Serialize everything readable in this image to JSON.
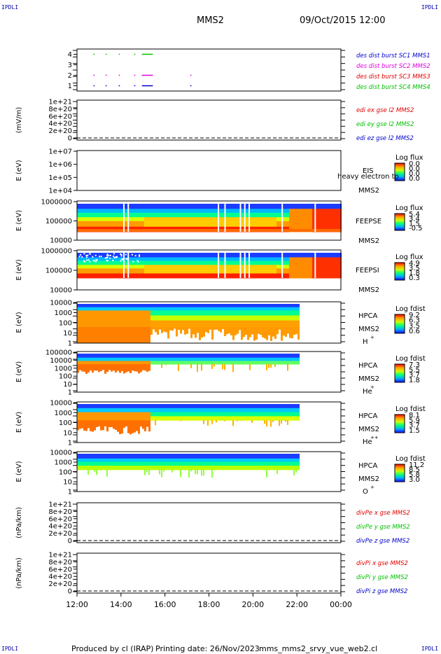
{
  "header": {
    "corner_tl": "IPDLI",
    "corner_tr": "IPDLI",
    "corner_bl": "IPDLI",
    "corner_br": "IPDLI",
    "spacecraft": "MMS2",
    "datetime": "09/Oct/2015 12:00"
  },
  "footer": {
    "produced_by": "Produced by cl (IRAP)",
    "printing_date": "Printing date: 26/Nov/2023",
    "filename": "mms_mms2_srvy_vue_web2.cl"
  },
  "time_axis": {
    "ticks": [
      "12:00",
      "14:00",
      "16:00",
      "18:00",
      "20:00",
      "22:00",
      "00:00"
    ],
    "start_hour": 12,
    "end_hour": 24
  },
  "colors": {
    "red": "#e00000",
    "green": "#00c000",
    "blue": "#0000cc",
    "magenta": "#e000e0",
    "panel_border": "#000000"
  },
  "chart_data": [
    {
      "type": "line",
      "panel": "burst",
      "yticks": [
        "4",
        "3",
        "2",
        "1"
      ],
      "ylim": [
        0.5,
        4.5
      ],
      "legend": [
        {
          "name": "des dist burst SC1 MMS1",
          "color": "#0000cc"
        },
        {
          "name": "des dist burst SC2 MMS2",
          "color": "#e000e0"
        },
        {
          "name": "des dist burst SC3 MMS3",
          "color": "#e00000"
        },
        {
          "name": "des dist burst SC4 MMS4",
          "color": "#00c000"
        }
      ],
      "series": [
        {
          "name": "des dist burst SC4 MMS4",
          "level": 4,
          "intervals": [
            [
              12.75,
              12.8
            ],
            [
              13.3,
              13.35
            ],
            [
              13.9,
              13.95
            ],
            [
              14.6,
              14.65
            ],
            [
              14.95,
              15.45
            ]
          ]
        },
        {
          "name": "des dist burst SC2 MMS2",
          "level": 2,
          "intervals": [
            [
              12.75,
              12.8
            ],
            [
              13.3,
              13.35
            ],
            [
              13.9,
              13.95
            ],
            [
              14.6,
              14.65
            ],
            [
              14.95,
              15.45
            ],
            [
              17.15,
              17.2
            ]
          ]
        },
        {
          "name": "des dist burst SC1 MMS1",
          "level": 1,
          "intervals": [
            [
              12.75,
              12.8
            ],
            [
              13.3,
              13.35
            ],
            [
              13.9,
              13.95
            ],
            [
              14.6,
              14.65
            ],
            [
              14.95,
              15.45
            ],
            [
              17.15,
              17.2
            ]
          ]
        }
      ]
    },
    {
      "type": "line",
      "panel": "edi",
      "ylabel": "(mV/m)",
      "yticks": [
        "1e+21",
        "8e+20",
        "6e+20",
        "4e+20",
        "2e+20",
        "0"
      ],
      "ylim": [
        0,
        1e+21
      ],
      "legend": [
        {
          "name": "edi ex gse l2 MMS2",
          "color": "#e00000"
        },
        {
          "name": "edi ey gse l2 MMS2",
          "color": "#00c000"
        },
        {
          "name": "edi ez gse l2 MMS2",
          "color": "#0000cc"
        }
      ]
    },
    {
      "type": "heatmap",
      "panel": "eis",
      "ylabel": "E (eV)",
      "yticks": [
        "1e+07",
        "1e+06",
        "1e+05",
        "1e+04"
      ],
      "instrument": "EIS",
      "species": "heavy electron to",
      "spacecraft": "MMS2",
      "colorbar_label": "Log flux",
      "colorbar_ticks": [
        "0.0",
        "0.0",
        "0.0",
        "0.0"
      ]
    },
    {
      "type": "heatmap",
      "panel": "feepse",
      "ylabel": "E (eV)",
      "yticks": [
        "1000000",
        "100000",
        "10000"
      ],
      "instrument": "FEEPSE",
      "spacecraft": "MMS2",
      "colorbar_label": "Log flux",
      "colorbar_ticks": [
        "5.4",
        "3.4",
        "1.5",
        "-0.5"
      ]
    },
    {
      "type": "heatmap",
      "panel": "feepsi",
      "ylabel": "E (eV)",
      "yticks": [
        "1000000",
        "100000",
        "10000"
      ],
      "instrument": "FEEPSI",
      "spacecraft": "MMS2",
      "colorbar_label": "Log flux",
      "colorbar_ticks": [
        "4.9",
        "3.5",
        "1.8",
        "0.3"
      ]
    },
    {
      "type": "heatmap",
      "panel": "hpca_h",
      "ylabel": "E (eV)",
      "yticks": [
        "10000",
        "1000",
        "100",
        "10",
        "1"
      ],
      "instrument": "HPCA",
      "spacecraft": "MMS2",
      "species": "H",
      "charge": "+",
      "colorbar_label": "Log fdist",
      "colorbar_ticks": [
        "9.2",
        "6.3",
        "3.5",
        "0.6"
      ]
    },
    {
      "type": "heatmap",
      "panel": "hpca_he",
      "ylabel": "E (eV)",
      "yticks": [
        "100000",
        "10000",
        "1000",
        "100",
        "10",
        "1"
      ],
      "instrument": "HPCA",
      "spacecraft": "MMS2",
      "species": "He",
      "charge": "+",
      "colorbar_label": "Log fdist",
      "colorbar_ticks": [
        "7.3",
        "5.5",
        "3.7",
        "1.8"
      ]
    },
    {
      "type": "heatmap",
      "panel": "hpca_hepp",
      "ylabel": "E (eV)",
      "yticks": [
        "10000",
        "1000",
        "100",
        "10",
        "1"
      ],
      "instrument": "HPCA",
      "spacecraft": "MMS2",
      "species": "He",
      "charge": "++",
      "colorbar_label": "Log fdist",
      "colorbar_ticks": [
        "8.1",
        "5.9",
        "3.7",
        "1.5"
      ]
    },
    {
      "type": "heatmap",
      "panel": "hpca_o",
      "ylabel": "E (eV)",
      "yticks": [
        "10000",
        "1000",
        "100",
        "10",
        "1"
      ],
      "instrument": "HPCA",
      "spacecraft": "MMS2",
      "species": "O",
      "charge": "+",
      "colorbar_label": "Log fdist",
      "colorbar_ticks": [
        "11.2",
        "8.5",
        "5.8",
        "3.0"
      ]
    },
    {
      "type": "line",
      "panel": "divpe",
      "ylabel": "(nPa/km)",
      "yticks": [
        "1e+21",
        "8e+20",
        "6e+20",
        "4e+20",
        "2e+20",
        "0"
      ],
      "ylim": [
        0,
        1e+21
      ],
      "legend": [
        {
          "name": "divPe x gse MMS2",
          "color": "#e00000"
        },
        {
          "name": "divPe y gse MMS2",
          "color": "#00c000"
        },
        {
          "name": "divPe z gse MMS2",
          "color": "#0000cc"
        }
      ]
    },
    {
      "type": "line",
      "panel": "divpi",
      "ylabel": "(nPa/km)",
      "yticks": [
        "1e+21",
        "8e+20",
        "6e+20",
        "4e+20",
        "2e+20",
        "0"
      ],
      "ylim": [
        0,
        1e+21
      ],
      "legend": [
        {
          "name": "divPi x gse MMS2",
          "color": "#e00000"
        },
        {
          "name": "divPi y gse MMS2",
          "color": "#00c000"
        },
        {
          "name": "divPi z gse MMS2",
          "color": "#0000cc"
        }
      ]
    }
  ]
}
